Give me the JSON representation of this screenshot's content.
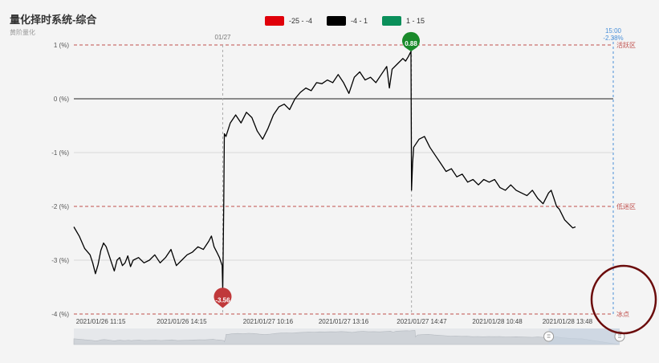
{
  "title": "量化择时系统-综合",
  "subtitle": "黄阶量化",
  "legend": [
    {
      "label": "-25 - -4",
      "color": "#e0000a"
    },
    {
      "label": "-4 - 1",
      "color": "#000000"
    },
    {
      "label": "1 - 15",
      "color": "#0a8f5a"
    }
  ],
  "chart_data": {
    "type": "line",
    "y_ticks": [
      {
        "value": 1,
        "label": "1 (%)"
      },
      {
        "value": 0,
        "label": "0 (%)"
      },
      {
        "value": -1,
        "label": "-1 (%)"
      },
      {
        "value": -2,
        "label": "-2 (%)"
      },
      {
        "value": -3,
        "label": "-3 (%)"
      },
      {
        "value": -4,
        "label": "-4 (%)"
      }
    ],
    "ylim": [
      -4,
      1
    ],
    "x_tick_labels": [
      "2021/01/26 11:15",
      "2021/01/26 14:15",
      "2021/01/27 10:16",
      "2021/01/27 13:16",
      "2021/01/27 14:47",
      "2021/01/28 10:48",
      "2021/01/28 13:48"
    ],
    "zones": [
      {
        "value": 1,
        "label": "活跃区"
      },
      {
        "value": -2,
        "label": "低迷区"
      },
      {
        "value": -4,
        "label": "冰点"
      }
    ],
    "day_marker_label": "01/27",
    "end_marker": {
      "time": "15:00",
      "value_label": "-2.38%"
    },
    "markers": [
      {
        "label": "-3.56",
        "value": -3.56,
        "kind": "min",
        "color": "#c0393b"
      },
      {
        "label": "0.88",
        "value": 0.88,
        "kind": "max",
        "color": "#1a8a2b"
      }
    ],
    "series": [
      {
        "color": "#000000",
        "points": [
          [
            0,
            -2.38
          ],
          [
            0.01,
            -2.55
          ],
          [
            0.02,
            -2.78
          ],
          [
            0.03,
            -2.9
          ],
          [
            0.035,
            -3.05
          ],
          [
            0.04,
            -3.25
          ],
          [
            0.045,
            -3.08
          ],
          [
            0.05,
            -2.82
          ],
          [
            0.055,
            -2.68
          ],
          [
            0.06,
            -2.75
          ],
          [
            0.065,
            -2.9
          ],
          [
            0.07,
            -3.05
          ],
          [
            0.075,
            -3.2
          ],
          [
            0.08,
            -3.0
          ],
          [
            0.085,
            -2.95
          ],
          [
            0.09,
            -3.1
          ],
          [
            0.095,
            -3.05
          ],
          [
            0.1,
            -2.92
          ],
          [
            0.105,
            -3.12
          ],
          [
            0.11,
            -3.0
          ],
          [
            0.12,
            -2.95
          ],
          [
            0.13,
            -3.05
          ],
          [
            0.14,
            -3.0
          ],
          [
            0.15,
            -2.9
          ],
          [
            0.16,
            -3.05
          ],
          [
            0.17,
            -2.95
          ],
          [
            0.18,
            -2.8
          ],
          [
            0.19,
            -3.1
          ],
          [
            0.2,
            -3.0
          ],
          [
            0.21,
            -2.9
          ],
          [
            0.22,
            -2.85
          ],
          [
            0.23,
            -2.75
          ],
          [
            0.24,
            -2.8
          ],
          [
            0.25,
            -2.65
          ],
          [
            0.255,
            -2.55
          ],
          [
            0.26,
            -2.75
          ],
          [
            0.265,
            -2.85
          ],
          [
            0.27,
            -2.95
          ],
          [
            0.275,
            -3.1
          ],
          [
            0.276,
            -3.56
          ],
          [
            0.278,
            -1.9
          ],
          [
            0.279,
            -0.65
          ],
          [
            0.282,
            -0.7
          ],
          [
            0.29,
            -0.45
          ],
          [
            0.3,
            -0.3
          ],
          [
            0.31,
            -0.45
          ],
          [
            0.32,
            -0.25
          ],
          [
            0.33,
            -0.35
          ],
          [
            0.34,
            -0.6
          ],
          [
            0.35,
            -0.75
          ],
          [
            0.36,
            -0.55
          ],
          [
            0.37,
            -0.3
          ],
          [
            0.38,
            -0.15
          ],
          [
            0.39,
            -0.1
          ],
          [
            0.4,
            -0.2
          ],
          [
            0.41,
            0.0
          ],
          [
            0.42,
            0.12
          ],
          [
            0.43,
            0.2
          ],
          [
            0.44,
            0.15
          ],
          [
            0.45,
            0.3
          ],
          [
            0.46,
            0.28
          ],
          [
            0.47,
            0.35
          ],
          [
            0.48,
            0.3
          ],
          [
            0.49,
            0.45
          ],
          [
            0.5,
            0.3
          ],
          [
            0.51,
            0.1
          ],
          [
            0.52,
            0.4
          ],
          [
            0.53,
            0.5
          ],
          [
            0.54,
            0.35
          ],
          [
            0.55,
            0.4
          ],
          [
            0.56,
            0.3
          ],
          [
            0.57,
            0.45
          ],
          [
            0.58,
            0.6
          ],
          [
            0.585,
            0.2
          ],
          [
            0.59,
            0.55
          ],
          [
            0.6,
            0.65
          ],
          [
            0.61,
            0.75
          ],
          [
            0.615,
            0.7
          ],
          [
            0.62,
            0.78
          ],
          [
            0.625,
            0.88
          ],
          [
            0.626,
            -1.7
          ],
          [
            0.628,
            -1.2
          ],
          [
            0.63,
            -0.9
          ],
          [
            0.64,
            -0.75
          ],
          [
            0.65,
            -0.7
          ],
          [
            0.66,
            -0.9
          ],
          [
            0.67,
            -1.05
          ],
          [
            0.68,
            -1.2
          ],
          [
            0.69,
            -1.35
          ],
          [
            0.7,
            -1.3
          ],
          [
            0.71,
            -1.45
          ],
          [
            0.72,
            -1.4
          ],
          [
            0.73,
            -1.55
          ],
          [
            0.74,
            -1.5
          ],
          [
            0.75,
            -1.6
          ],
          [
            0.76,
            -1.5
          ],
          [
            0.77,
            -1.55
          ],
          [
            0.78,
            -1.5
          ],
          [
            0.79,
            -1.65
          ],
          [
            0.8,
            -1.7
          ],
          [
            0.81,
            -1.6
          ],
          [
            0.82,
            -1.7
          ],
          [
            0.83,
            -1.75
          ],
          [
            0.84,
            -1.8
          ],
          [
            0.85,
            -1.7
          ],
          [
            0.86,
            -1.85
          ],
          [
            0.87,
            -1.95
          ],
          [
            0.88,
            -1.75
          ],
          [
            0.885,
            -1.7
          ],
          [
            0.89,
            -1.85
          ],
          [
            0.895,
            -2.0
          ],
          [
            0.9,
            -2.05
          ],
          [
            0.91,
            -2.25
          ],
          [
            0.92,
            -2.35
          ],
          [
            0.925,
            -2.4
          ],
          [
            0.93,
            -2.38
          ]
        ]
      }
    ]
  },
  "navigator": {
    "range_start": 0.87,
    "range_end": 1.0
  }
}
